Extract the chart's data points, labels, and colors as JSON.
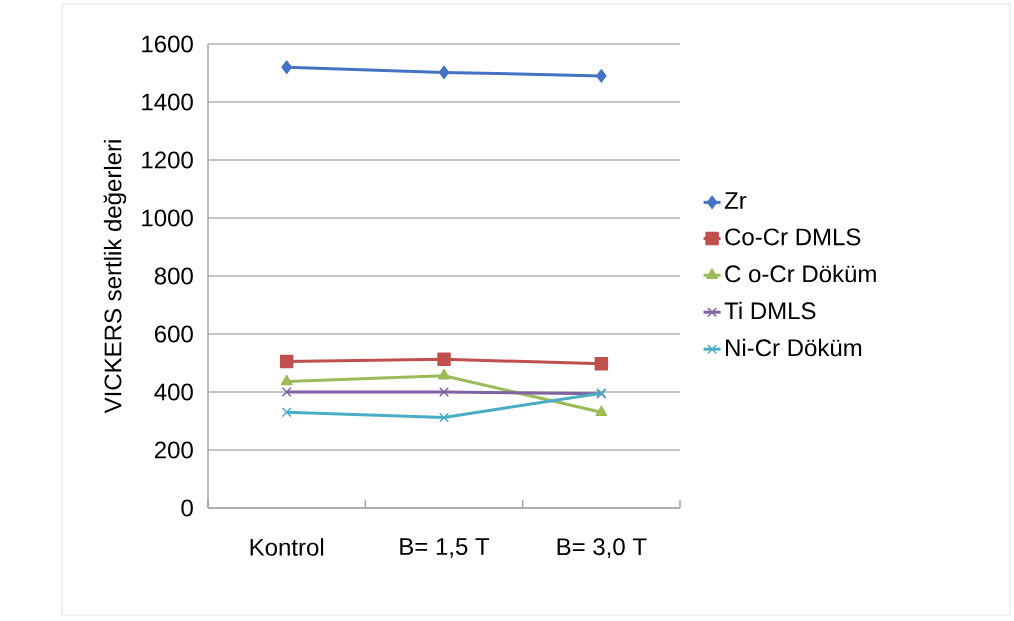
{
  "chart_data": {
    "type": "line",
    "ylabel": "VICKERS sertlik değerleri",
    "categories": [
      "Kontrol",
      "B= 1,5 T",
      "B= 3,0 T"
    ],
    "series": [
      {
        "name": "Zr",
        "color": "#4472c4",
        "marker": "diamond",
        "values": [
          1520,
          1502,
          1490
        ]
      },
      {
        "name": "Co-Cr DMLS",
        "color": "#c0504d",
        "marker": "square",
        "values": [
          505,
          513,
          497
        ]
      },
      {
        "name": "C o-Cr Döküm",
        "color": "#9bbb59",
        "marker": "triangle",
        "values": [
          436,
          456,
          330
        ]
      },
      {
        "name": "Ti DMLS",
        "color": "#8064a2",
        "marker": "cross",
        "values": [
          400,
          400,
          394
        ]
      },
      {
        "name": "Ni-Cr Döküm",
        "color": "#4bacc6",
        "marker": "cross",
        "values": [
          330,
          312,
          396
        ]
      }
    ],
    "ylim": [
      0,
      1600
    ],
    "yticks": [
      0,
      200,
      400,
      600,
      800,
      1000,
      1200,
      1400,
      1600
    ],
    "grid": "y",
    "legend": "right"
  }
}
